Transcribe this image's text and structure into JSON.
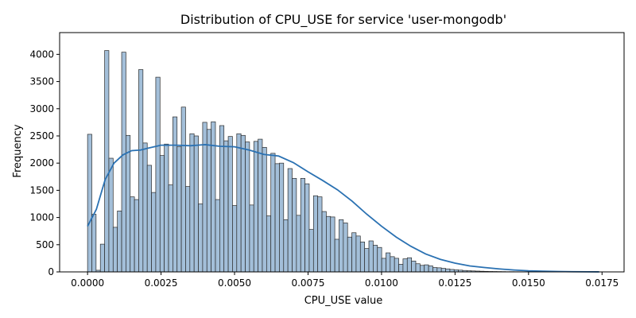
{
  "chart_data": {
    "type": "bar",
    "title": "Distribution of CPU_USE for service 'user-mongodb'",
    "xlabel": "CPU_USE value",
    "ylabel": "Frequency",
    "xlim": [
      -0.00095,
      0.01825
    ],
    "ylim": [
      0,
      4400
    ],
    "bin_width": 0.000145,
    "xticks": [
      0.0,
      0.0025,
      0.005,
      0.0075,
      0.01,
      0.0125,
      0.015,
      0.0175
    ],
    "xtick_labels": [
      "0.0000",
      "0.0025",
      "0.0050",
      "0.0075",
      "0.0100",
      "0.0125",
      "0.0150",
      "0.0175"
    ],
    "yticks": [
      0,
      500,
      1000,
      1500,
      2000,
      2500,
      3000,
      3500,
      4000
    ],
    "ytick_labels": [
      "0",
      "500",
      "1000",
      "1500",
      "2000",
      "2500",
      "3000",
      "3500",
      "4000"
    ],
    "bins": [
      [
        0.0,
        2530
      ],
      [
        0.000145,
        1060
      ],
      [
        0.00029,
        30
      ],
      [
        0.000435,
        510
      ],
      [
        0.00058,
        4070
      ],
      [
        0.000725,
        2090
      ],
      [
        0.00087,
        820
      ],
      [
        0.001015,
        1120
      ],
      [
        0.00116,
        4040
      ],
      [
        0.001305,
        2510
      ],
      [
        0.00145,
        1380
      ],
      [
        0.001595,
        1330
      ],
      [
        0.00174,
        3720
      ],
      [
        0.001885,
        2370
      ],
      [
        0.00203,
        1960
      ],
      [
        0.002175,
        1460
      ],
      [
        0.00232,
        3580
      ],
      [
        0.002465,
        2140
      ],
      [
        0.00261,
        2350
      ],
      [
        0.002755,
        1600
      ],
      [
        0.0029,
        2850
      ],
      [
        0.003045,
        2300
      ],
      [
        0.00319,
        3030
      ],
      [
        0.003335,
        1570
      ],
      [
        0.00348,
        2540
      ],
      [
        0.003625,
        2500
      ],
      [
        0.00377,
        1250
      ],
      [
        0.003915,
        2750
      ],
      [
        0.00406,
        2620
      ],
      [
        0.004205,
        2760
      ],
      [
        0.00435,
        1330
      ],
      [
        0.004495,
        2690
      ],
      [
        0.00464,
        2410
      ],
      [
        0.004785,
        2490
      ],
      [
        0.00493,
        1220
      ],
      [
        0.005075,
        2540
      ],
      [
        0.00522,
        2510
      ],
      [
        0.005365,
        2390
      ],
      [
        0.00551,
        1230
      ],
      [
        0.005655,
        2400
      ],
      [
        0.0058,
        2440
      ],
      [
        0.005945,
        2290
      ],
      [
        0.00609,
        1030
      ],
      [
        0.006235,
        2180
      ],
      [
        0.00638,
        1990
      ],
      [
        0.006525,
        2000
      ],
      [
        0.00667,
        960
      ],
      [
        0.006815,
        1900
      ],
      [
        0.00696,
        1720
      ],
      [
        0.007105,
        1040
      ],
      [
        0.00725,
        1720
      ],
      [
        0.007395,
        1620
      ],
      [
        0.00754,
        780
      ],
      [
        0.007685,
        1400
      ],
      [
        0.00783,
        1380
      ],
      [
        0.007975,
        1110
      ],
      [
        0.00812,
        1020
      ],
      [
        0.008265,
        1010
      ],
      [
        0.00841,
        600
      ],
      [
        0.008555,
        960
      ],
      [
        0.0087,
        900
      ],
      [
        0.008845,
        640
      ],
      [
        0.00899,
        720
      ],
      [
        0.009135,
        660
      ],
      [
        0.00928,
        550
      ],
      [
        0.009425,
        430
      ],
      [
        0.00957,
        570
      ],
      [
        0.009715,
        490
      ],
      [
        0.00986,
        450
      ],
      [
        0.010005,
        250
      ],
      [
        0.01015,
        350
      ],
      [
        0.010295,
        280
      ],
      [
        0.01044,
        250
      ],
      [
        0.010585,
        140
      ],
      [
        0.01073,
        240
      ],
      [
        0.010875,
        260
      ],
      [
        0.01102,
        200
      ],
      [
        0.011165,
        150
      ],
      [
        0.01131,
        120
      ],
      [
        0.011455,
        130
      ],
      [
        0.0116,
        110
      ],
      [
        0.011745,
        80
      ],
      [
        0.01189,
        75
      ],
      [
        0.012035,
        65
      ],
      [
        0.01218,
        55
      ],
      [
        0.012325,
        45
      ],
      [
        0.01247,
        38
      ],
      [
        0.012615,
        32
      ],
      [
        0.01276,
        26
      ],
      [
        0.012905,
        22
      ],
      [
        0.01305,
        18
      ],
      [
        0.013195,
        15
      ],
      [
        0.01334,
        12
      ],
      [
        0.013485,
        10
      ],
      [
        0.01363,
        8
      ],
      [
        0.013775,
        7
      ],
      [
        0.01392,
        6
      ],
      [
        0.014065,
        5
      ],
      [
        0.01421,
        4
      ],
      [
        0.014355,
        4
      ],
      [
        0.0145,
        3
      ],
      [
        0.014645,
        3
      ],
      [
        0.01479,
        2
      ],
      [
        0.014935,
        2
      ],
      [
        0.01508,
        2
      ],
      [
        0.015225,
        1
      ],
      [
        0.01537,
        1
      ],
      [
        0.015515,
        1
      ],
      [
        0.01566,
        1
      ],
      [
        0.015805,
        1
      ],
      [
        0.01595,
        1
      ],
      [
        0.016095,
        1
      ],
      [
        0.01624,
        1
      ],
      [
        0.016385,
        0
      ],
      [
        0.01653,
        0
      ],
      [
        0.016675,
        0
      ],
      [
        0.01682,
        0
      ],
      [
        0.016965,
        0
      ],
      [
        0.01711,
        0
      ],
      [
        0.017255,
        0
      ]
    ],
    "kde": [
      [
        0.0,
        840
      ],
      [
        0.0003,
        1150
      ],
      [
        0.0006,
        1700
      ],
      [
        0.0009,
        2000
      ],
      [
        0.0012,
        2150
      ],
      [
        0.0015,
        2230
      ],
      [
        0.0018,
        2240
      ],
      [
        0.0021,
        2280
      ],
      [
        0.0025,
        2330
      ],
      [
        0.003,
        2330
      ],
      [
        0.0035,
        2320
      ],
      [
        0.004,
        2340
      ],
      [
        0.0045,
        2310
      ],
      [
        0.005,
        2300
      ],
      [
        0.0055,
        2240
      ],
      [
        0.006,
        2160
      ],
      [
        0.0065,
        2130
      ],
      [
        0.007,
        2010
      ],
      [
        0.0075,
        1840
      ],
      [
        0.008,
        1680
      ],
      [
        0.0085,
        1510
      ],
      [
        0.009,
        1300
      ],
      [
        0.0095,
        1060
      ],
      [
        0.01,
        840
      ],
      [
        0.0105,
        640
      ],
      [
        0.011,
        470
      ],
      [
        0.0115,
        330
      ],
      [
        0.012,
        230
      ],
      [
        0.0125,
        160
      ],
      [
        0.013,
        110
      ],
      [
        0.0135,
        80
      ],
      [
        0.014,
        55
      ],
      [
        0.0145,
        35
      ],
      [
        0.015,
        20
      ],
      [
        0.0155,
        12
      ],
      [
        0.016,
        7
      ],
      [
        0.0165,
        4
      ],
      [
        0.017,
        2
      ],
      [
        0.0174,
        1
      ]
    ],
    "colors": {
      "bar_fill": "#a3bfd9",
      "bar_stroke": "#2b2b2b",
      "kde_line": "#2a71b2",
      "axis": "#000000",
      "background": "#ffffff"
    },
    "grid": false,
    "legend": "none"
  }
}
